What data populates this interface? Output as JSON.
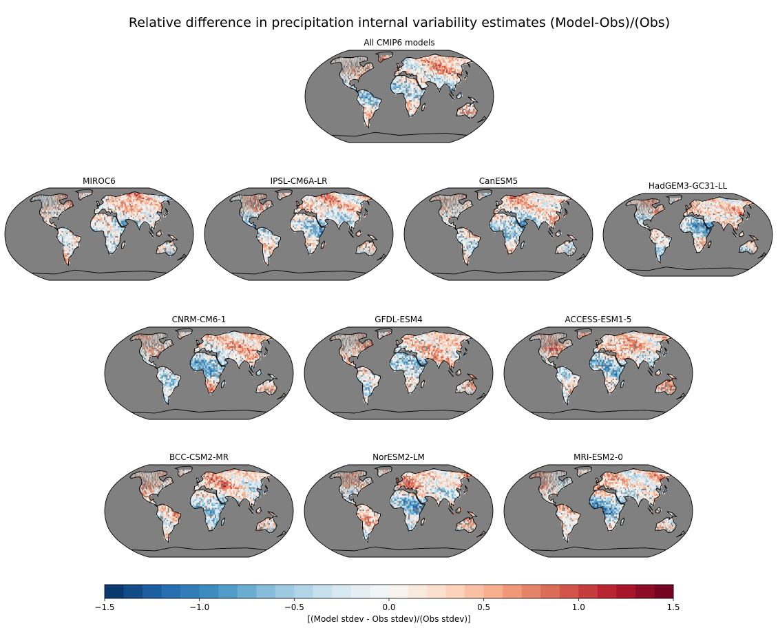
{
  "chart_data": {
    "type": "heatmap",
    "title": "Relative difference in precipitation internal variability estimates (Model-Obs)/(Obs)",
    "panels": [
      {
        "name": "All CMIP6 models"
      },
      {
        "name": "MIROC6"
      },
      {
        "name": "IPSL-CM6A-LR"
      },
      {
        "name": "CanESM5"
      },
      {
        "name": "HadGEM3-GC31-LL"
      },
      {
        "name": "CNRM-CM6-1"
      },
      {
        "name": "GFDL-ESM4"
      },
      {
        "name": "ACCESS-ESM1-5"
      },
      {
        "name": "BCC-CSM2-MR"
      },
      {
        "name": "NorESM2-LM"
      },
      {
        "name": "MRI-ESM2-0"
      }
    ],
    "colorbar": {
      "label": "[(Model stdev - Obs stdev)/(Obs stdev)]",
      "min": -1.5,
      "max": 1.5,
      "levels": 30,
      "colormap": "RdBu_r",
      "ticks": [
        -1.5,
        -1.0,
        -0.5,
        0.0,
        0.5,
        1.0,
        1.5
      ],
      "tick_labels": [
        "−1.5",
        "−1.0",
        "−0.5",
        "0.0",
        "0.5",
        "1.0",
        "1.5"
      ]
    },
    "projection": "Robinson",
    "background_color": "#808080",
    "land_mask_missing": "#808080"
  }
}
